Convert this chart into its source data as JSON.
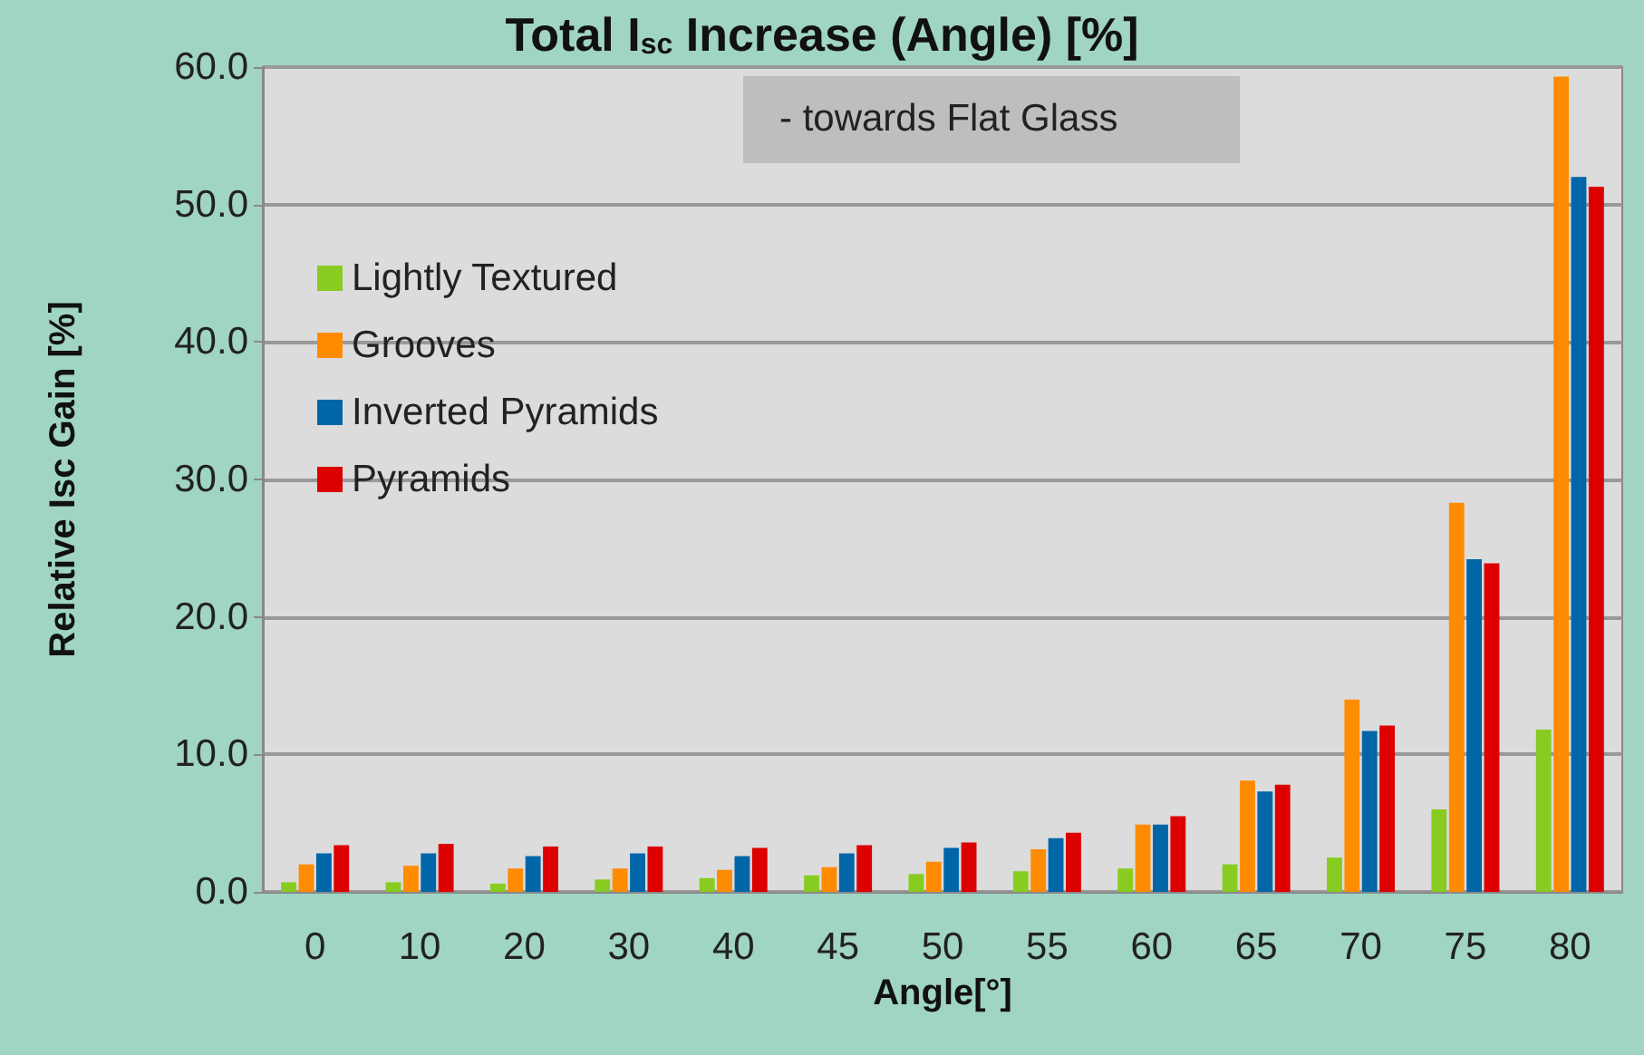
{
  "chart_data": {
    "type": "bar",
    "title": "Total I$_{sc}$ Increase (Angle) [%]",
    "xlabel": "Angle[°]",
    "ylabel": "Relative Isc Gain [%]",
    "categories": [
      "0",
      "10",
      "20",
      "30",
      "40",
      "45",
      "50",
      "55",
      "60",
      "65",
      "70",
      "75",
      "80"
    ],
    "series": [
      {
        "name": "Lightly Textured",
        "color": "#88cc22",
        "values": [
          0.7,
          0.7,
          0.6,
          0.9,
          1.0,
          1.2,
          1.3,
          1.5,
          1.7,
          2.0,
          2.5,
          6.0,
          11.8
        ]
      },
      {
        "name": "Grooves",
        "color": "#ff8c00",
        "values": [
          2.0,
          1.9,
          1.7,
          1.7,
          1.6,
          1.8,
          2.2,
          3.1,
          4.9,
          8.1,
          14.0,
          28.3,
          59.3
        ]
      },
      {
        "name": "Inverted Pyramids",
        "color": "#0066a8",
        "values": [
          2.8,
          2.8,
          2.6,
          2.8,
          2.6,
          2.8,
          3.2,
          3.9,
          4.9,
          7.3,
          11.7,
          24.2,
          52.0
        ]
      },
      {
        "name": "Pyramids",
        "color": "#dd0000",
        "values": [
          3.4,
          3.5,
          3.3,
          3.3,
          3.2,
          3.4,
          3.6,
          4.3,
          5.5,
          7.8,
          12.1,
          23.9,
          51.3
        ]
      }
    ],
    "ylim": [
      0,
      60
    ],
    "yticks": [
      {
        "value": 0,
        "label": "0.0"
      },
      {
        "value": 10,
        "label": "10.0"
      },
      {
        "value": 20,
        "label": "20.0"
      },
      {
        "value": 30,
        "label": "30.0"
      },
      {
        "value": 40,
        "label": "40.0"
      },
      {
        "value": 50,
        "label": "50.0"
      },
      {
        "value": 60,
        "label": "60.0"
      }
    ],
    "grid": "y",
    "legend": "top left",
    "annotations": [
      "- towards Flat Glass"
    ]
  }
}
